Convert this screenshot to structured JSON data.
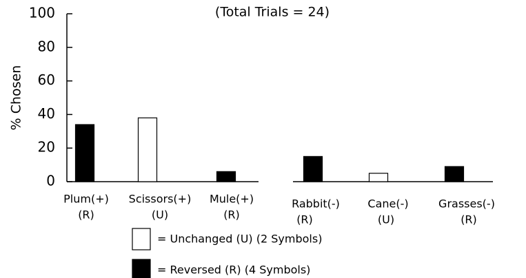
{
  "chart_data": {
    "type": "bar",
    "subtitle": "(Total Trials = 24)",
    "y_label": "% Chosen",
    "categories": [
      "Plum(+)",
      "Scissors(+)",
      "Mule(+)",
      "Rabbit(-)",
      "Cane(-)",
      "Grasses(-)"
    ],
    "category_codes": [
      "(R)",
      "(U)",
      "(R)",
      "(R)",
      "(U)",
      "(R)"
    ],
    "series": [
      {
        "name": "= Unchanged (U) (2 Symbols)",
        "color": "#ffffff",
        "values": [
          null,
          38,
          null,
          null,
          5,
          null
        ]
      },
      {
        "name": "= Reversed (R) (4 Symbols)",
        "color": "#000000",
        "values": [
          34,
          null,
          6,
          15,
          null,
          9
        ]
      }
    ],
    "ylim": [
      0,
      100
    ],
    "yticks": [
      0,
      20,
      40,
      60,
      80,
      100
    ],
    "grid": false
  }
}
